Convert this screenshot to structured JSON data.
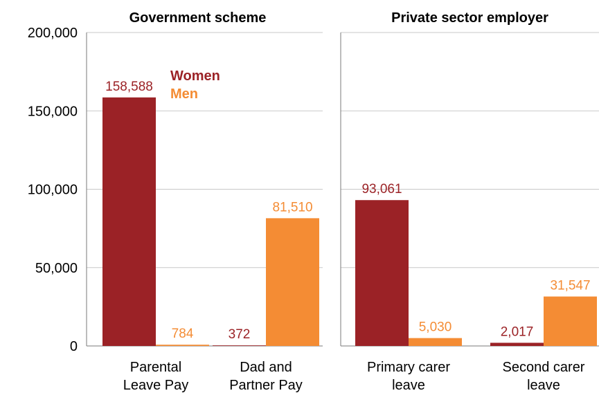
{
  "colors": {
    "women": "#9b2226",
    "men": "#f48c34"
  },
  "chart_data": {
    "type": "bar",
    "ylim": [
      0,
      200000
    ],
    "yticks": [
      {
        "value": 0,
        "label": "0"
      },
      {
        "value": 50000,
        "label": "50,000"
      },
      {
        "value": 100000,
        "label": "100,000"
      },
      {
        "value": 150000,
        "label": "150,000"
      },
      {
        "value": 200000,
        "label": "200,000"
      }
    ],
    "legend": {
      "position": "top-left of first panel",
      "entries": [
        "Women",
        "Men"
      ]
    },
    "panels": [
      {
        "title": "Government scheme",
        "categories": [
          {
            "lines": [
              "Parental",
              "Leave Pay"
            ]
          },
          {
            "lines": [
              "Dad and",
              "Partner Pay"
            ]
          }
        ],
        "series": [
          {
            "name": "Women",
            "values": [
              158588,
              372
            ],
            "labels": [
              "158,588",
              "372"
            ]
          },
          {
            "name": "Men",
            "values": [
              784,
              81510
            ],
            "labels": [
              "784",
              "81,510"
            ]
          }
        ]
      },
      {
        "title": "Private sector employer",
        "categories": [
          {
            "lines": [
              "Primary carer",
              "leave"
            ]
          },
          {
            "lines": [
              "Second carer",
              "leave"
            ]
          }
        ],
        "series": [
          {
            "name": "Women",
            "values": [
              93061,
              2017
            ],
            "labels": [
              "93,061",
              "2,017"
            ]
          },
          {
            "name": "Men",
            "values": [
              5030,
              31547
            ],
            "labels": [
              "5,030",
              "31,547"
            ]
          }
        ]
      }
    ]
  }
}
